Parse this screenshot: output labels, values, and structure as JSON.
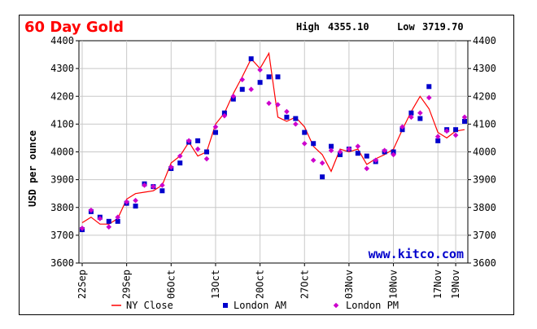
{
  "chart_data": {
    "type": "line",
    "title": "60 Day Gold",
    "high_label": "High",
    "high_value": "4355.10",
    "low_label": "Low",
    "low_value": "3719.70",
    "ylabel": "USD per ounce",
    "ylim": [
      3600,
      4400
    ],
    "yticks": [
      3600,
      3700,
      3800,
      3900,
      4000,
      4100,
      4200,
      4300,
      4400
    ],
    "watermark": "www.kitco.com",
    "x": [
      0,
      1,
      2,
      3,
      4,
      5,
      6,
      7,
      8,
      9,
      10,
      11,
      12,
      13,
      14,
      15,
      16,
      17,
      18,
      19,
      20,
      21,
      22,
      23,
      24,
      25,
      26,
      27,
      28,
      29,
      30,
      31,
      32,
      33,
      34,
      35,
      36,
      37,
      38,
      39,
      40,
      41,
      42,
      43
    ],
    "x_ticks": [
      {
        "label": "22Sep",
        "index": 0
      },
      {
        "label": "29Sep",
        "index": 5
      },
      {
        "label": "06Oct",
        "index": 10
      },
      {
        "label": "13Oct",
        "index": 15
      },
      {
        "label": "20Oct",
        "index": 20
      },
      {
        "label": "27Oct",
        "index": 25
      },
      {
        "label": "03Nov",
        "index": 30
      },
      {
        "label": "10Nov",
        "index": 35
      },
      {
        "label": "17Nov",
        "index": 40
      },
      {
        "label": "19Nov",
        "index": 42
      }
    ],
    "series": [
      {
        "name": "NY Close",
        "color": "#ff0000",
        "values": [
          3745,
          3765,
          3740,
          3740,
          3760,
          3830,
          3850,
          3855,
          3860,
          3880,
          3960,
          3985,
          4035,
          3985,
          4000,
          4100,
          4140,
          4210,
          4270,
          4335,
          4300,
          4355,
          4125,
          4110,
          4125,
          4090,
          4020,
          3990,
          3930,
          4010,
          4000,
          4010,
          3955,
          3975,
          3990,
          4010,
          4080,
          4145,
          4200,
          4155,
          4070,
          4050,
          4075,
          4080
        ]
      },
      {
        "name": "London AM",
        "color": "#0000cc",
        "values": [
          3720,
          3785,
          3765,
          3750,
          3750,
          3815,
          3805,
          3885,
          3875,
          3860,
          3940,
          3960,
          4035,
          4040,
          4000,
          4070,
          4140,
          4190,
          4225,
          4335,
          4250,
          4270,
          4270,
          4125,
          4120,
          4070,
          4030,
          3910,
          4020,
          3990,
          4010,
          3995,
          3985,
          3965,
          4000,
          4000,
          4080,
          4140,
          4120,
          4235,
          4040,
          4080,
          4080,
          4110
        ]
      },
      {
        "name": "London PM",
        "color": "#cc00cc",
        "values": [
          3725,
          3790,
          3760,
          3730,
          3765,
          3820,
          3825,
          3880,
          3875,
          3880,
          3945,
          3985,
          4040,
          4010,
          3975,
          4090,
          4130,
          4200,
          4260,
          4225,
          4295,
          4175,
          4170,
          4145,
          4100,
          4030,
          3970,
          3960,
          4005,
          4000,
          4010,
          4020,
          3940,
          3970,
          4005,
          3990,
          4090,
          4125,
          4140,
          4195,
          4055,
          4075,
          4060,
          4125
        ]
      }
    ]
  }
}
